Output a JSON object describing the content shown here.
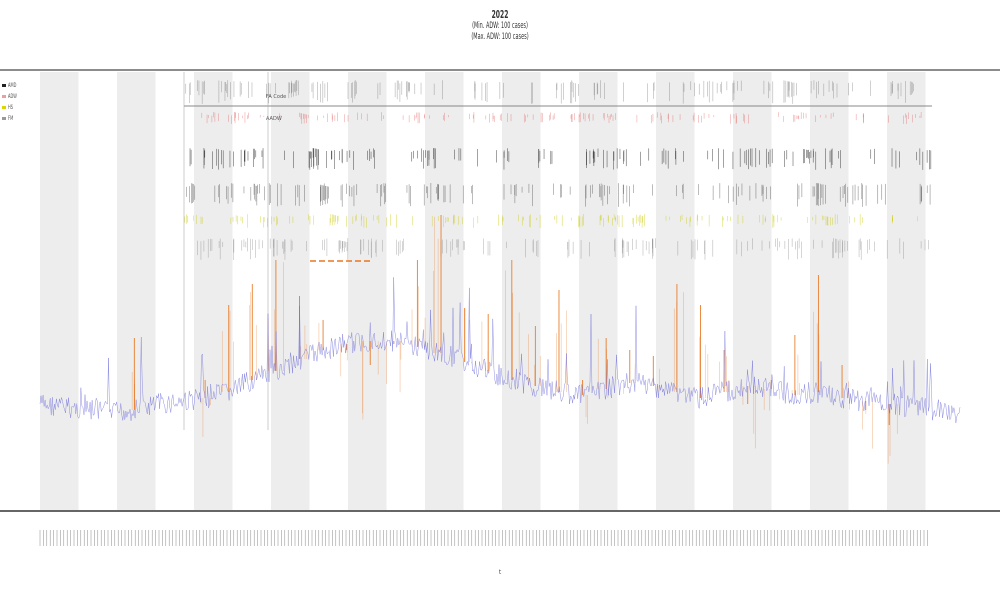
{
  "header": {
    "title": "2022",
    "subtitle_1": "(Min. ADW: 100 cases)",
    "subtitle_2": "(Max. ADW: 100 cases)"
  },
  "legend": {
    "items": [
      {
        "label": "AMD",
        "color": "#222222"
      },
      {
        "label": "ADW",
        "color": "#e8a0a0"
      },
      {
        "label": "HS",
        "color": "#d8d800"
      },
      {
        "label": "FM",
        "color": "#999999"
      }
    ]
  },
  "annotations": {
    "label_1": "FA Code",
    "label_2": "AADW"
  },
  "xaxis": {
    "label": "t"
  },
  "colors": {
    "series_blue": "#6b6bd8",
    "series_orange": "#e87722",
    "band_gray": "#ededed",
    "axis": "#555555"
  },
  "chart_data": {
    "type": "line",
    "title": "2022",
    "xlabel": "t",
    "ylabel": "",
    "grid": false,
    "shaded_bands": 12,
    "series": [
      {
        "values": [
          0.12,
          0.11,
          0.1,
          0.09,
          0.1,
          0.12,
          0.13,
          0.14,
          0.16,
          0.2,
          0.23,
          0.27,
          0.3,
          0.32,
          0.33,
          0.33,
          0.31,
          0.29,
          0.26,
          0.23,
          0.2,
          0.18,
          0.16,
          0.15,
          0.17,
          0.19,
          0.18,
          0.16,
          0.14,
          0.16,
          0.18,
          0.17,
          0.15,
          0.16,
          0.14,
          0.13,
          0.12,
          0.11,
          0.1,
          0.09
        ]
      },
      {
        "values": [
          0,
          0,
          0,
          0,
          0.34,
          0,
          0,
          0.2,
          0.45,
          0.52,
          0.6,
          0.48,
          0.4,
          0.3,
          0.25,
          0.32,
          0.6,
          0.75,
          0.44,
          0.42,
          0.6,
          0.38,
          0.5,
          0.2,
          0.34,
          0.3,
          0.28,
          0.52,
          0.45,
          0.3,
          0.12,
          0.2,
          0.35,
          0.55,
          0.25,
          0.1,
          0.05,
          0,
          0,
          0
        ]
      }
    ]
  }
}
